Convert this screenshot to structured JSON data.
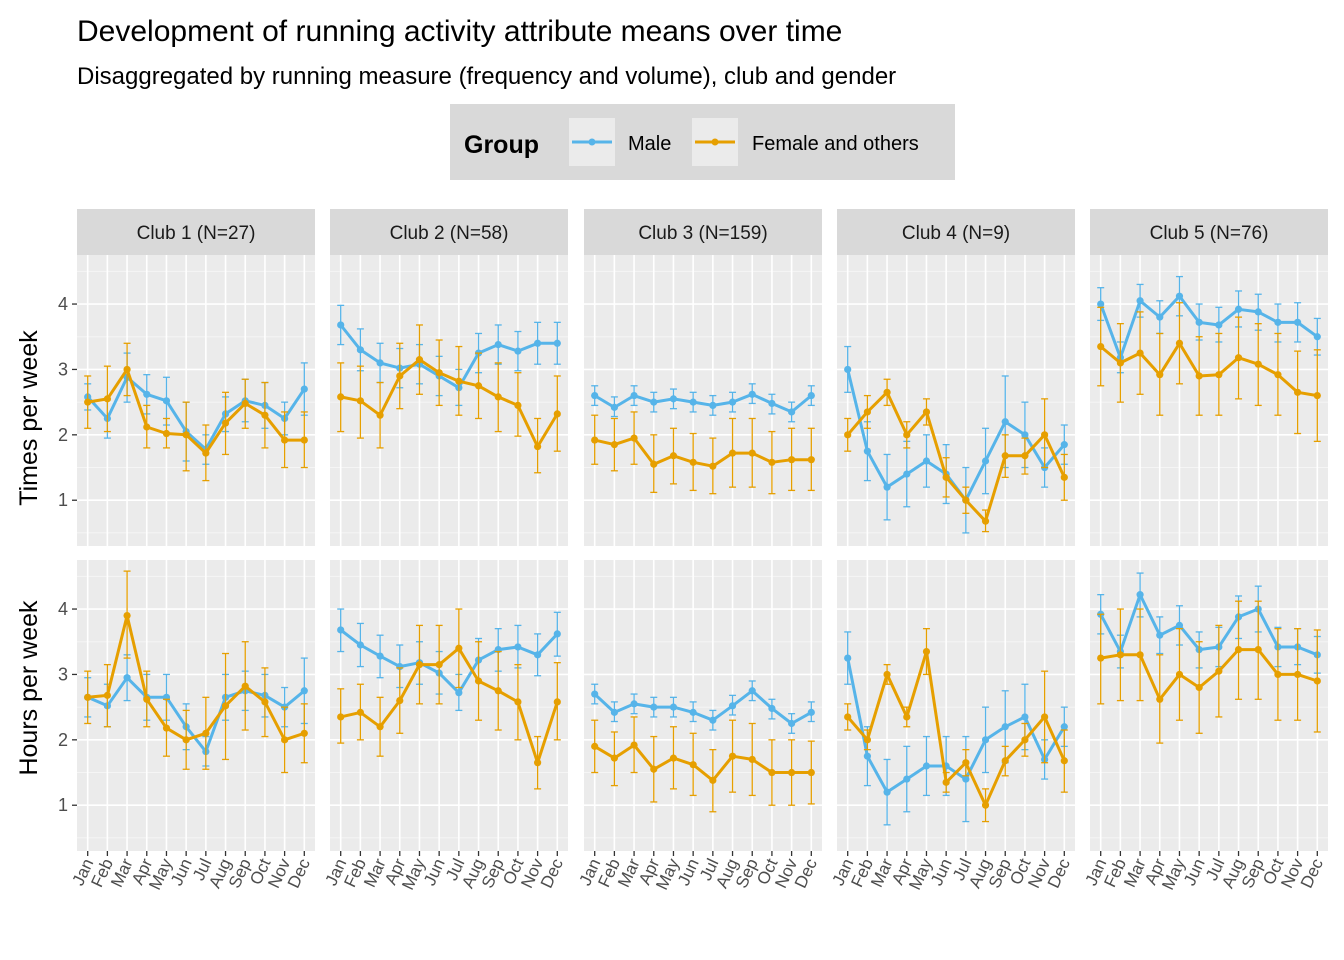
{
  "chart_data": {
    "type": "line",
    "title": "Development of running activity attribute means over time",
    "subtitle": "Disaggregated by running measure (frequency and volume), club and gender",
    "legend": {
      "title": "Group",
      "placement": "top",
      "entries": [
        {
          "name": "Male",
          "color": "#56B4E9"
        },
        {
          "name": "Female and others",
          "color": "#E69F00"
        }
      ]
    },
    "grid": true,
    "x_categories": [
      "Jan",
      "Feb",
      "Mar",
      "Apr",
      "May",
      "Jun",
      "Jul",
      "Aug",
      "Sep",
      "Oct",
      "Nov",
      "Dec"
    ],
    "facet_columns": [
      "Club 1 (N=27)",
      "Club 2 (N=58)",
      "Club 3 (N=159)",
      "Club 4 (N=9)",
      "Club 5 (N=76)"
    ],
    "rows": [
      {
        "ylabel": "Times per week",
        "ylim": [
          0.3,
          4.75
        ],
        "yticks": [
          1,
          2,
          3,
          4
        ]
      },
      {
        "ylabel": "Hours per week",
        "ylim": [
          0.3,
          4.75
        ],
        "yticks": [
          1,
          2,
          3,
          4
        ]
      }
    ],
    "panels": [
      {
        "row": 0,
        "col": 0,
        "series": [
          {
            "name": "Male",
            "values": [
              2.58,
              2.25,
              2.88,
              2.62,
              2.52,
              2.05,
              1.78,
              2.32,
              2.52,
              2.45,
              2.25,
              2.7
            ],
            "lower": [
              2.38,
              1.95,
              2.5,
              2.32,
              2.15,
              1.6,
              1.55,
              2.05,
              2.2,
              2.1,
              2.0,
              2.3
            ],
            "upper": [
              2.78,
              2.55,
              3.25,
              2.92,
              2.88,
              2.5,
              2.0,
              2.58,
              2.85,
              2.8,
              2.5,
              3.1
            ]
          },
          {
            "name": "Female and others",
            "values": [
              2.5,
              2.55,
              3.0,
              2.12,
              2.02,
              2.0,
              1.72,
              2.18,
              2.48,
              2.3,
              1.92,
              1.92
            ],
            "lower": [
              2.1,
              2.05,
              2.6,
              1.8,
              1.8,
              1.45,
              1.3,
              1.7,
              2.1,
              1.8,
              1.5,
              1.5
            ],
            "upper": [
              2.9,
              3.05,
              3.4,
              2.45,
              2.25,
              2.5,
              2.15,
              2.65,
              2.85,
              2.8,
              2.35,
              2.35
            ]
          }
        ]
      },
      {
        "row": 0,
        "col": 1,
        "series": [
          {
            "name": "Male",
            "values": [
              3.68,
              3.3,
              3.1,
              3.02,
              3.08,
              2.9,
              2.72,
              3.25,
              3.38,
              3.28,
              3.4,
              3.4
            ],
            "lower": [
              3.38,
              2.98,
              2.8,
              2.72,
              2.78,
              2.6,
              2.45,
              2.95,
              3.08,
              2.98,
              3.08,
              3.08
            ],
            "upper": [
              3.98,
              3.62,
              3.4,
              3.32,
              3.38,
              3.2,
              3.0,
              3.55,
              3.68,
              3.58,
              3.72,
              3.72
            ]
          },
          {
            "name": "Female and others",
            "values": [
              2.58,
              2.52,
              2.3,
              2.9,
              3.15,
              2.95,
              2.82,
              2.75,
              2.58,
              2.45,
              1.82,
              2.32
            ],
            "lower": [
              2.05,
              1.95,
              1.8,
              2.4,
              2.62,
              2.45,
              2.3,
              2.25,
              2.05,
              1.98,
              1.42,
              1.75
            ],
            "upper": [
              3.1,
              3.05,
              2.8,
              3.4,
              3.68,
              3.45,
              3.35,
              3.25,
              3.1,
              2.95,
              2.25,
              2.9
            ]
          }
        ]
      },
      {
        "row": 0,
        "col": 2,
        "series": [
          {
            "name": "Male",
            "values": [
              2.6,
              2.42,
              2.6,
              2.5,
              2.55,
              2.5,
              2.45,
              2.5,
              2.62,
              2.48,
              2.35,
              2.6
            ],
            "lower": [
              2.45,
              2.28,
              2.45,
              2.35,
              2.4,
              2.35,
              2.3,
              2.35,
              2.48,
              2.32,
              2.2,
              2.45
            ],
            "upper": [
              2.75,
              2.58,
              2.75,
              2.65,
              2.7,
              2.65,
              2.6,
              2.65,
              2.78,
              2.62,
              2.5,
              2.75
            ]
          },
          {
            "name": "Female and others",
            "values": [
              1.92,
              1.85,
              1.95,
              1.55,
              1.68,
              1.58,
              1.52,
              1.72,
              1.72,
              1.58,
              1.62,
              1.62
            ],
            "lower": [
              1.55,
              1.45,
              1.55,
              1.12,
              1.25,
              1.15,
              1.1,
              1.2,
              1.2,
              1.1,
              1.15,
              1.15
            ],
            "upper": [
              2.3,
              2.25,
              2.35,
              2.0,
              2.1,
              2.02,
              1.95,
              2.25,
              2.25,
              2.05,
              2.1,
              2.1
            ]
          }
        ]
      },
      {
        "row": 0,
        "col": 3,
        "series": [
          {
            "name": "Male",
            "values": [
              3.0,
              1.75,
              1.2,
              1.4,
              1.6,
              1.4,
              1.0,
              1.6,
              2.2,
              2.0,
              1.5,
              1.85
            ],
            "lower": [
              2.65,
              1.3,
              0.7,
              0.9,
              1.2,
              0.95,
              0.5,
              1.1,
              1.5,
              1.5,
              1.2,
              1.55
            ],
            "upper": [
              3.35,
              2.2,
              1.7,
              1.9,
              2.0,
              1.85,
              1.5,
              2.1,
              2.9,
              2.5,
              1.8,
              2.15
            ]
          },
          {
            "name": "Female and others",
            "values": [
              2.0,
              2.35,
              2.65,
              2.0,
              2.35,
              1.35,
              1.0,
              0.68,
              1.68,
              1.68,
              2.0,
              1.35
            ],
            "lower": [
              1.75,
              2.1,
              2.45,
              1.8,
              2.15,
              1.05,
              0.8,
              0.52,
              1.35,
              1.4,
              1.5,
              1.0
            ],
            "upper": [
              2.25,
              2.6,
              2.85,
              2.2,
              2.55,
              1.65,
              1.2,
              0.85,
              2.0,
              1.95,
              2.55,
              1.7
            ]
          }
        ]
      },
      {
        "row": 0,
        "col": 4,
        "series": [
          {
            "name": "Male",
            "values": [
              4.0,
              3.18,
              4.05,
              3.8,
              4.12,
              3.72,
              3.68,
              3.92,
              3.88,
              3.72,
              3.72,
              3.5
            ],
            "lower": [
              3.75,
              2.95,
              3.8,
              3.55,
              3.82,
              3.45,
              3.42,
              3.65,
              3.6,
              3.42,
              3.42,
              3.22
            ],
            "upper": [
              4.25,
              3.42,
              4.3,
              4.05,
              4.42,
              4.0,
              3.95,
              4.2,
              4.15,
              4.0,
              4.02,
              3.78
            ]
          },
          {
            "name": "Female and others",
            "values": [
              3.35,
              3.1,
              3.25,
              2.92,
              3.4,
              2.9,
              2.92,
              3.18,
              3.08,
              2.92,
              2.65,
              2.6
            ],
            "lower": [
              2.75,
              2.5,
              2.62,
              2.3,
              2.78,
              2.3,
              2.3,
              2.55,
              2.45,
              2.3,
              2.02,
              1.9
            ],
            "upper": [
              3.95,
              3.7,
              3.88,
              3.55,
              4.02,
              3.5,
              3.55,
              3.8,
              3.7,
              3.55,
              3.28,
              3.3
            ]
          }
        ]
      },
      {
        "row": 1,
        "col": 0,
        "series": [
          {
            "name": "Male",
            "values": [
              2.65,
              2.52,
              2.95,
              2.65,
              2.65,
              2.2,
              1.82,
              2.65,
              2.75,
              2.68,
              2.5,
              2.75
            ],
            "lower": [
              2.35,
              2.2,
              2.6,
              2.3,
              2.3,
              1.85,
              1.6,
              2.3,
              2.45,
              2.35,
              2.2,
              2.25
            ],
            "upper": [
              2.95,
              2.85,
              3.3,
              3.0,
              3.0,
              2.55,
              2.05,
              3.0,
              3.05,
              3.0,
              2.8,
              3.25
            ]
          },
          {
            "name": "Female and others",
            "values": [
              2.65,
              2.68,
              3.9,
              2.62,
              2.18,
              2.0,
              2.1,
              2.52,
              2.82,
              2.58,
              2.0,
              2.1
            ],
            "lower": [
              2.25,
              2.2,
              3.25,
              2.2,
              1.75,
              1.55,
              1.55,
              1.7,
              2.15,
              2.05,
              1.5,
              1.65
            ],
            "upper": [
              3.05,
              3.15,
              4.58,
              3.05,
              2.62,
              2.45,
              2.65,
              3.32,
              3.5,
              3.1,
              2.5,
              2.55
            ]
          }
        ]
      },
      {
        "row": 1,
        "col": 1,
        "series": [
          {
            "name": "Male",
            "values": [
              3.68,
              3.45,
              3.28,
              3.12,
              3.18,
              3.02,
              2.72,
              3.22,
              3.38,
              3.42,
              3.3,
              3.62
            ],
            "lower": [
              3.35,
              3.12,
              2.95,
              2.8,
              2.85,
              2.7,
              2.45,
              2.9,
              3.05,
              3.1,
              2.98,
              3.28
            ],
            "upper": [
              4.0,
              3.78,
              3.6,
              3.45,
              3.5,
              3.35,
              3.0,
              3.55,
              3.7,
              3.75,
              3.62,
              3.95
            ]
          },
          {
            "name": "Female and others",
            "values": [
              2.35,
              2.42,
              2.2,
              2.6,
              3.15,
              3.15,
              3.4,
              2.9,
              2.75,
              2.58,
              1.65,
              2.58
            ],
            "lower": [
              1.95,
              2.0,
              1.75,
              2.1,
              2.55,
              2.55,
              2.8,
              2.3,
              2.15,
              2.0,
              1.25,
              2.0
            ],
            "upper": [
              2.78,
              2.85,
              2.65,
              3.1,
              3.75,
              3.75,
              4.0,
              3.5,
              3.35,
              3.15,
              2.05,
              3.18
            ]
          }
        ]
      },
      {
        "row": 1,
        "col": 2,
        "series": [
          {
            "name": "Male",
            "values": [
              2.7,
              2.42,
              2.55,
              2.5,
              2.5,
              2.42,
              2.3,
              2.52,
              2.75,
              2.48,
              2.25,
              2.42
            ],
            "lower": [
              2.55,
              2.28,
              2.4,
              2.35,
              2.35,
              2.28,
              2.15,
              2.38,
              2.6,
              2.32,
              2.1,
              2.28
            ],
            "upper": [
              2.85,
              2.58,
              2.7,
              2.65,
              2.65,
              2.58,
              2.45,
              2.68,
              2.9,
              2.62,
              2.4,
              2.58
            ]
          },
          {
            "name": "Female and others",
            "values": [
              1.9,
              1.72,
              1.92,
              1.55,
              1.72,
              1.62,
              1.38,
              1.75,
              1.7,
              1.5,
              1.5,
              1.5
            ],
            "lower": [
              1.5,
              1.3,
              1.5,
              1.05,
              1.25,
              1.15,
              0.9,
              1.2,
              1.15,
              1.0,
              1.0,
              1.02
            ],
            "upper": [
              2.3,
              2.12,
              2.35,
              2.05,
              2.2,
              2.1,
              1.85,
              2.3,
              2.25,
              2.0,
              2.0,
              1.98
            ]
          }
        ]
      },
      {
        "row": 1,
        "col": 3,
        "series": [
          {
            "name": "Male",
            "values": [
              3.25,
              1.75,
              1.2,
              1.4,
              1.6,
              1.6,
              1.4,
              2.0,
              2.2,
              2.35,
              1.7,
              2.2
            ],
            "lower": [
              2.85,
              1.3,
              0.7,
              0.9,
              1.15,
              1.15,
              0.75,
              1.5,
              1.65,
              1.85,
              1.4,
              1.9
            ],
            "upper": [
              3.65,
              2.2,
              1.7,
              1.9,
              2.05,
              2.05,
              2.05,
              2.5,
              2.75,
              2.85,
              2.0,
              2.5
            ]
          },
          {
            "name": "Female and others",
            "values": [
              2.35,
              2.0,
              3.0,
              2.35,
              3.35,
              1.35,
              1.65,
              1.0,
              1.68,
              2.0,
              2.35,
              1.68
            ],
            "lower": [
              2.15,
              1.85,
              2.85,
              2.2,
              3.0,
              1.2,
              1.45,
              0.75,
              1.45,
              1.75,
              1.65,
              1.2
            ],
            "upper": [
              2.55,
              2.15,
              3.15,
              2.5,
              3.7,
              1.5,
              1.85,
              1.25,
              1.9,
              2.25,
              3.05,
              2.15
            ]
          }
        ]
      },
      {
        "row": 1,
        "col": 4,
        "series": [
          {
            "name": "Male",
            "values": [
              3.92,
              3.35,
              4.22,
              3.6,
              3.75,
              3.38,
              3.42,
              3.88,
              4.0,
              3.42,
              3.42,
              3.3
            ],
            "lower": [
              3.62,
              3.1,
              3.88,
              3.32,
              3.45,
              3.1,
              3.12,
              3.55,
              3.65,
              3.12,
              3.15,
              3.02
            ],
            "upper": [
              4.22,
              3.6,
              4.55,
              3.88,
              4.05,
              3.65,
              3.72,
              4.2,
              4.35,
              3.72,
              3.7,
              3.58
            ]
          },
          {
            "name": "Female and others",
            "values": [
              3.25,
              3.3,
              3.3,
              2.62,
              3.0,
              2.8,
              3.05,
              3.38,
              3.38,
              3.0,
              3.0,
              2.9
            ],
            "lower": [
              2.55,
              2.6,
              2.6,
              1.95,
              2.3,
              2.1,
              2.35,
              2.62,
              2.62,
              2.3,
              2.3,
              2.12
            ],
            "upper": [
              3.92,
              4.0,
              4.0,
              3.3,
              3.7,
              3.5,
              3.75,
              4.12,
              4.12,
              3.7,
              3.7,
              3.68
            ]
          }
        ]
      }
    ]
  }
}
